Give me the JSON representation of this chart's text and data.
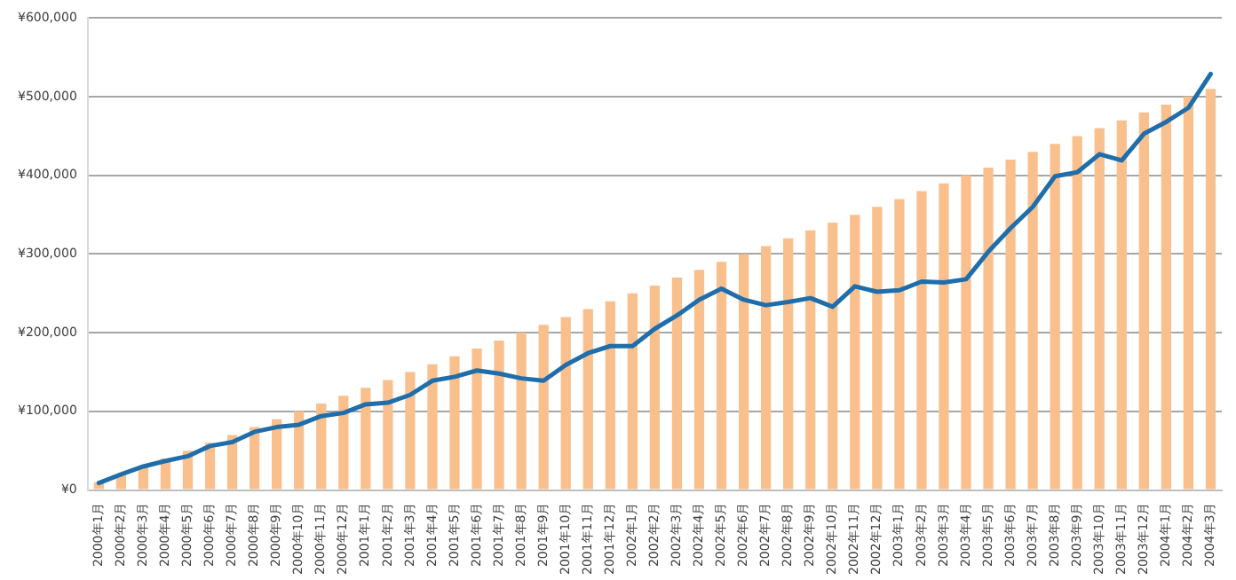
{
  "chart_data": {
    "type": "bar",
    "categories": [
      "2000年1月",
      "2000年2月",
      "2000年3月",
      "2000年4月",
      "2000年5月",
      "2000年6月",
      "2000年7月",
      "2000年8月",
      "2000年9月",
      "2000年10月",
      "2000年11月",
      "2000年12月",
      "2001年1月",
      "2001年2月",
      "2001年3月",
      "2001年4月",
      "2001年5月",
      "2001年6月",
      "2001年7月",
      "2001年8月",
      "2001年9月",
      "2001年10月",
      "2001年11月",
      "2001年12月",
      "2002年1月",
      "2002年2月",
      "2002年3月",
      "2002年4月",
      "2002年5月",
      "2002年6月",
      "2002年7月",
      "2002年8月",
      "2002年9月",
      "2002年10月",
      "2002年11月",
      "2002年12月",
      "2003年1月",
      "2003年2月",
      "2003年3月",
      "2003年4月",
      "2003年5月",
      "2003年6月",
      "2003年7月",
      "2003年8月",
      "2003年9月",
      "2003年10月",
      "2003年11月",
      "2003年12月",
      "2004年1月",
      "2004年2月",
      "2004年3月"
    ],
    "series": [
      {
        "color": "#f9c08e",
        "values": [
          10000,
          20000,
          30000,
          40000,
          50000,
          60000,
          70000,
          80000,
          90000,
          100000,
          110000,
          120000,
          130000,
          140000,
          150000,
          160000,
          170000,
          180000,
          190000,
          200000,
          210000,
          220000,
          230000,
          240000,
          250000,
          260000,
          270000,
          280000,
          290000,
          300000,
          310000,
          320000,
          330000,
          340000,
          350000,
          360000,
          370000,
          380000,
          390000,
          400000,
          410000,
          420000,
          430000,
          440000,
          450000,
          460000,
          470000,
          480000,
          490000,
          500000,
          510000
        ]
      },
      {
        "type": "line",
        "color": "#1f6eab",
        "values": [
          9000,
          20000,
          30000,
          37000,
          43000,
          56000,
          61000,
          74000,
          80000,
          83000,
          94000,
          98000,
          109000,
          111000,
          121000,
          139000,
          144000,
          152000,
          148000,
          142000,
          139000,
          159000,
          174000,
          183000,
          183000,
          205000,
          222000,
          242000,
          256000,
          242000,
          235000,
          239000,
          244000,
          233000,
          259000,
          252000,
          254000,
          265000,
          264000,
          268000,
          303000,
          333000,
          360000,
          399000,
          404000,
          427000,
          419000,
          453000,
          468000,
          486000,
          529000
        ]
      }
    ],
    "ylim": [
      0,
      600000
    ],
    "yticks": [
      {
        "value": 0,
        "label": "¥0"
      },
      {
        "value": 100000,
        "label": "¥100,000"
      },
      {
        "value": 200000,
        "label": "¥200,000"
      },
      {
        "value": 300000,
        "label": "¥300,000"
      },
      {
        "value": 400000,
        "label": "¥400,000"
      },
      {
        "value": 500000,
        "label": "¥500,000"
      },
      {
        "value": 600000,
        "label": "¥600,000"
      }
    ],
    "grid": "y",
    "legend": false,
    "marker": "none"
  }
}
